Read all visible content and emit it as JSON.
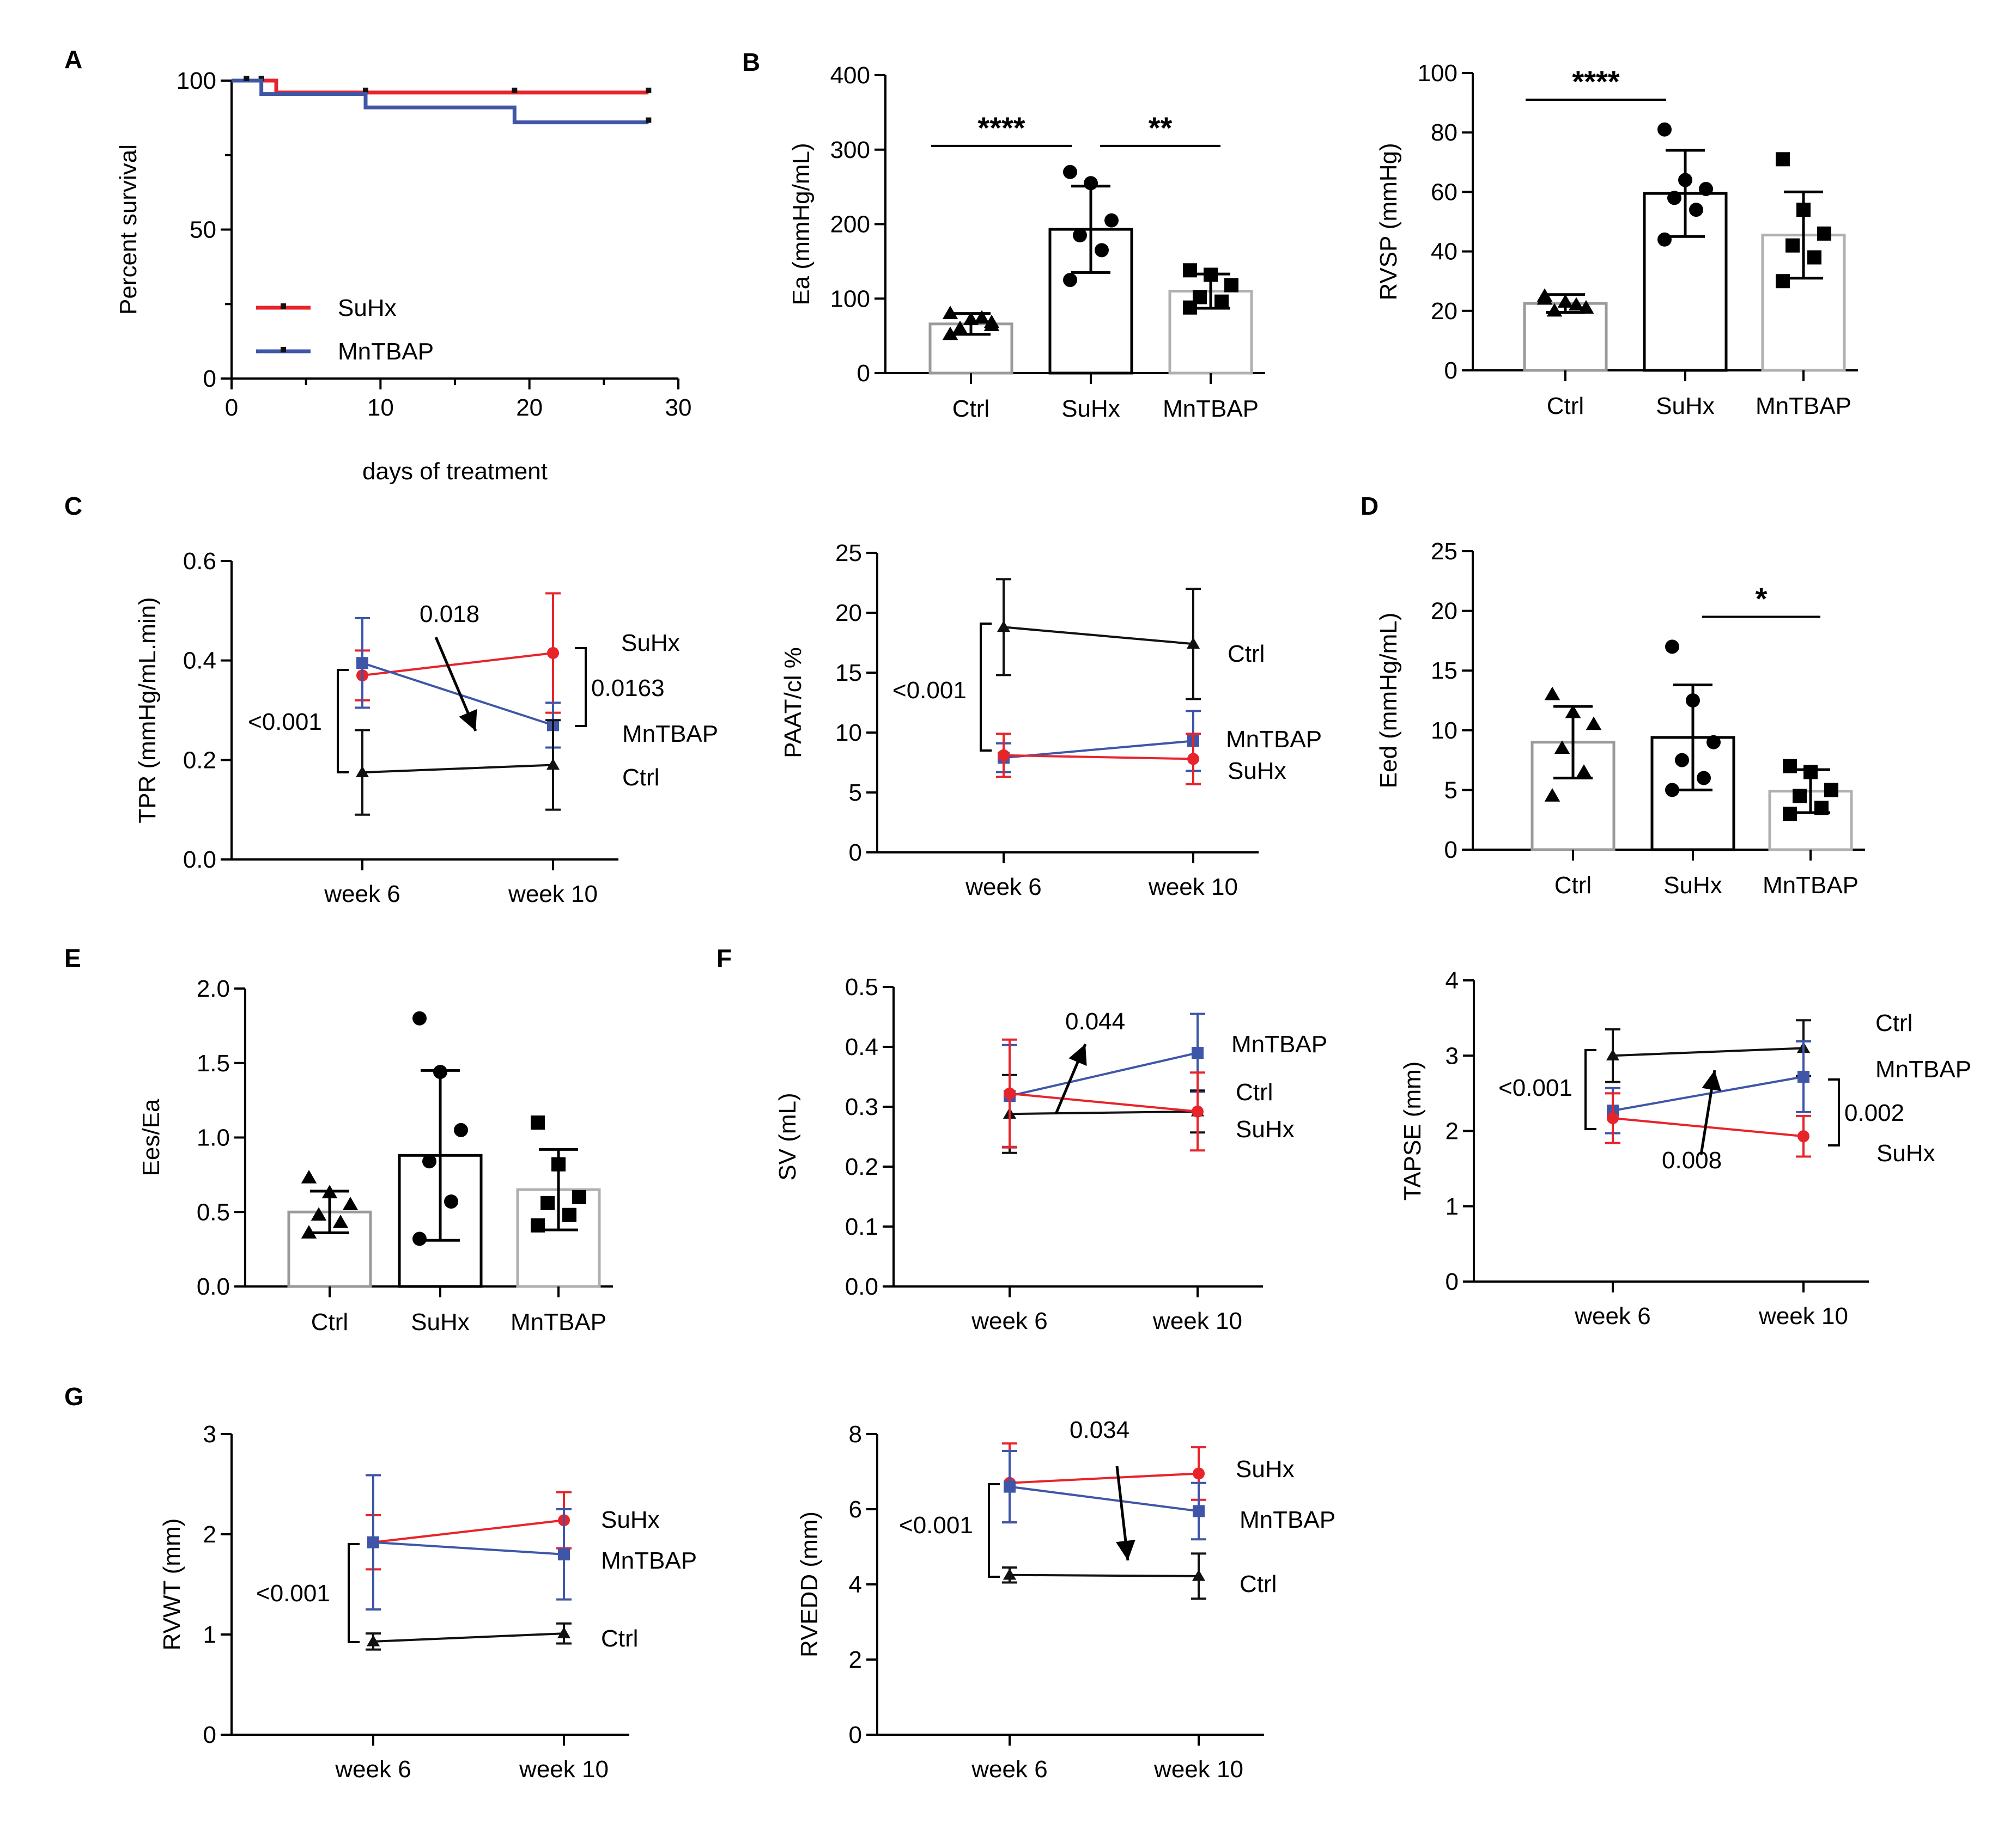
{
  "colors": {
    "SuHx": "#e8242b",
    "MnTBAP": "#3f56a8",
    "Ctrl": "#111111",
    "Ctrl_bar": "#9a9a9a",
    "MnTBAP_bar": "#b0b0b0"
  },
  "panel_letters": [
    "A",
    "B",
    "C",
    "D",
    "E",
    "F",
    "G"
  ],
  "chart_data": [
    {
      "id": "A",
      "type": "line",
      "step": true,
      "xlabel": "days of treatment",
      "ylabel": "Percent survival",
      "xlim": [
        0,
        30
      ],
      "ylim": [
        0,
        100
      ],
      "xticks": [
        "0",
        "10",
        "20",
        "30"
      ],
      "yticks": [
        "0",
        "50",
        "100"
      ],
      "series": [
        {
          "name": "SuHx",
          "x": [
            0,
            3,
            28
          ],
          "y": [
            100,
            96,
            96
          ],
          "censor_x": [
            1,
            2,
            9,
            19,
            28
          ],
          "censor_y": [
            100,
            100,
            96,
            96,
            96
          ]
        },
        {
          "name": "MnTBAP",
          "x": [
            0,
            2,
            9,
            19,
            28
          ],
          "y": [
            100,
            95.5,
            91,
            86,
            86
          ],
          "censor_x": [
            1,
            28
          ],
          "censor_y": [
            100,
            86
          ]
        }
      ],
      "legend": [
        "SuHx",
        "MnTBAP"
      ]
    },
    {
      "id": "B1",
      "type": "bar",
      "ylabel": "Ea (mmHg/mL)",
      "ylim": [
        0,
        400
      ],
      "yticks": [
        "0",
        "100",
        "200",
        "300",
        "400"
      ],
      "categories": [
        "Ctrl",
        "SuHx",
        "MnTBAP"
      ],
      "values": [
        66,
        193,
        110
      ],
      "sd": [
        14,
        58,
        23
      ],
      "points": [
        [
          80,
          72,
          64,
          60,
          74,
          52,
          68
        ],
        [
          270,
          255,
          205,
          185,
          165,
          125
        ],
        [
          138,
          132,
          118,
          102,
          96,
          88
        ]
      ],
      "markers": [
        "triangle",
        "circle",
        "square"
      ],
      "sig": [
        {
          "from": 0,
          "to": 1,
          "label": "****",
          "y": 305
        },
        {
          "from": 1,
          "to": 2,
          "label": "**",
          "y": 305
        }
      ]
    },
    {
      "id": "B2",
      "type": "bar",
      "ylabel": "RVSP (mmHg)",
      "ylim": [
        0,
        100
      ],
      "yticks": [
        "0",
        "20",
        "40",
        "60",
        "80",
        "100"
      ],
      "categories": [
        "Ctrl",
        "SuHx",
        "MnTBAP"
      ],
      "values": [
        22.5,
        59.5,
        45.5
      ],
      "sd": [
        3,
        14.5,
        14.5
      ],
      "points": [
        [
          25,
          23,
          21,
          20,
          22,
          24,
          21
        ],
        [
          81,
          64,
          61,
          58,
          54,
          44
        ],
        [
          71,
          54,
          46,
          42,
          38,
          30
        ]
      ],
      "markers": [
        "triangle",
        "circle",
        "square"
      ],
      "sig": [
        {
          "from": 0,
          "to": 1,
          "label": "****",
          "y": 91
        }
      ]
    },
    {
      "id": "C1",
      "type": "line",
      "ylabel": "TPR (mmHg/mL.min)",
      "ylim": [
        0,
        0.6
      ],
      "yticks": [
        "0.0",
        "0.2",
        "0.4",
        "0.6"
      ],
      "categories": [
        "week 6",
        "week 10"
      ],
      "series": [
        {
          "name": "SuHx",
          "values": [
            0.37,
            0.415
          ],
          "err": [
            0.05,
            0.12
          ]
        },
        {
          "name": "MnTBAP",
          "values": [
            0.395,
            0.27
          ],
          "err": [
            0.09,
            0.045
          ]
        },
        {
          "name": "Ctrl",
          "values": [
            0.175,
            0.19
          ],
          "err": [
            0.085,
            0.09
          ]
        }
      ],
      "annotations": [
        "0.018",
        "<0.001",
        "0.0163"
      ],
      "labels_right": [
        "SuHx",
        "MnTBAP",
        "Ctrl"
      ]
    },
    {
      "id": "C2",
      "type": "line",
      "ylabel": "PAAT/cl %",
      "ylim": [
        0,
        25
      ],
      "yticks": [
        "0",
        "5",
        "10",
        "15",
        "20",
        "25"
      ],
      "categories": [
        "week 6",
        "week 10"
      ],
      "series": [
        {
          "name": "Ctrl",
          "values": [
            18.8,
            17.4
          ],
          "err": [
            4,
            4.6
          ]
        },
        {
          "name": "MnTBAP",
          "values": [
            7.9,
            9.3
          ],
          "err": [
            1.2,
            2.5
          ]
        },
        {
          "name": "SuHx",
          "values": [
            8.1,
            7.8
          ],
          "err": [
            1.8,
            2.1
          ]
        }
      ],
      "annotations": [
        "<0.001"
      ],
      "labels_right": [
        "Ctrl",
        "MnTBAP",
        "SuHx"
      ]
    },
    {
      "id": "D",
      "type": "bar",
      "ylabel": "Eed (mmHg/mL)",
      "ylim": [
        0,
        25
      ],
      "yticks": [
        "0",
        "5",
        "10",
        "15",
        "20",
        "25"
      ],
      "categories": [
        "Ctrl",
        "SuHx",
        "MnTBAP"
      ],
      "values": [
        9,
        9.4,
        4.9
      ],
      "sd": [
        3,
        4.4,
        1.8
      ],
      "points": [
        [
          13,
          11.5,
          10.5,
          8.5,
          6.5,
          4.5
        ],
        [
          17,
          12.5,
          9,
          7.5,
          6,
          5
        ],
        [
          7,
          6.5,
          5,
          4.5,
          3.5,
          3
        ]
      ],
      "markers": [
        "triangle",
        "circle",
        "square"
      ],
      "sig": [
        {
          "from": 1,
          "to": 2,
          "label": "*",
          "y": 19.5
        }
      ]
    },
    {
      "id": "E",
      "type": "bar",
      "ylabel": "Ees/Ea",
      "ylim": [
        0,
        2.0
      ],
      "yticks": [
        "0.0",
        "0.5",
        "1.0",
        "1.5",
        "2.0"
      ],
      "categories": [
        "Ctrl",
        "SuHx",
        "MnTBAP"
      ],
      "values": [
        0.5,
        0.88,
        0.65
      ],
      "sd": [
        0.14,
        0.57,
        0.27
      ],
      "points": [
        [
          0.73,
          0.63,
          0.55,
          0.48,
          0.43,
          0.36
        ],
        [
          1.8,
          1.44,
          1.05,
          0.84,
          0.57,
          0.32
        ],
        [
          1.1,
          0.82,
          0.6,
          0.56,
          0.48,
          0.41
        ]
      ],
      "markers": [
        "triangle",
        "circle",
        "square"
      ],
      "sig": []
    },
    {
      "id": "F1",
      "type": "line",
      "ylabel": "SV (mL)",
      "ylim": [
        0,
        0.5
      ],
      "yticks": [
        "0.0",
        "0.1",
        "0.2",
        "0.3",
        "0.4",
        "0.5"
      ],
      "categories": [
        "week 6",
        "week 10"
      ],
      "series": [
        {
          "name": "MnTBAP",
          "values": [
            0.318,
            0.39
          ],
          "err": [
            0.085,
            0.065
          ]
        },
        {
          "name": "Ctrl",
          "values": [
            0.288,
            0.292
          ],
          "err": [
            0.065,
            0.035
          ]
        },
        {
          "name": "SuHx",
          "values": [
            0.322,
            0.292
          ],
          "err": [
            0.09,
            0.065
          ]
        }
      ],
      "annotations": [
        "0.044"
      ],
      "labels_right": [
        "MnTBAP",
        "Ctrl",
        "SuHx"
      ]
    },
    {
      "id": "F2",
      "type": "line",
      "ylabel": "TAPSE (mm)",
      "ylim": [
        0,
        4
      ],
      "yticks": [
        "0",
        "1",
        "2",
        "3",
        "4"
      ],
      "categories": [
        "week 6",
        "week 10"
      ],
      "series": [
        {
          "name": "Ctrl",
          "values": [
            3.0,
            3.1
          ],
          "err": [
            0.35,
            0.37
          ]
        },
        {
          "name": "MnTBAP",
          "values": [
            2.27,
            2.72
          ],
          "err": [
            0.3,
            0.47
          ]
        },
        {
          "name": "SuHx",
          "values": [
            2.17,
            1.93
          ],
          "err": [
            0.33,
            0.27
          ]
        }
      ],
      "annotations": [
        "<0.001",
        "0.002",
        "0.008"
      ],
      "labels_right": [
        "Ctrl",
        "MnTBAP",
        "SuHx"
      ]
    },
    {
      "id": "G1",
      "type": "line",
      "ylabel": "RVWT (mm)",
      "ylim": [
        0,
        3
      ],
      "yticks": [
        "0",
        "1",
        "2",
        "3"
      ],
      "categories": [
        "week 6",
        "week 10"
      ],
      "series": [
        {
          "name": "SuHx",
          "values": [
            1.92,
            2.14
          ],
          "err": [
            0.27,
            0.28
          ]
        },
        {
          "name": "MnTBAP",
          "values": [
            1.92,
            1.8
          ],
          "err": [
            0.67,
            0.45
          ]
        },
        {
          "name": "Ctrl",
          "values": [
            0.93,
            1.01
          ],
          "err": [
            0.08,
            0.1
          ]
        }
      ],
      "annotations": [
        "<0.001"
      ],
      "labels_right": [
        "SuHx",
        "MnTBAP",
        "Ctrl"
      ]
    },
    {
      "id": "G2",
      "type": "line",
      "ylabel": "RVEDD (mm)",
      "ylim": [
        0,
        8
      ],
      "yticks": [
        "0",
        "2",
        "4",
        "6",
        "8"
      ],
      "categories": [
        "week 6",
        "week 10"
      ],
      "series": [
        {
          "name": "SuHx",
          "values": [
            6.7,
            6.95
          ],
          "err": [
            1.05,
            0.7
          ]
        },
        {
          "name": "MnTBAP",
          "values": [
            6.6,
            5.95
          ],
          "err": [
            0.95,
            0.75
          ]
        },
        {
          "name": "Ctrl",
          "values": [
            4.25,
            4.22
          ],
          "err": [
            0.2,
            0.6
          ]
        }
      ],
      "annotations": [
        "0.034",
        "<0.001"
      ],
      "labels_right": [
        "SuHx",
        "MnTBAP",
        "Ctrl"
      ]
    }
  ]
}
